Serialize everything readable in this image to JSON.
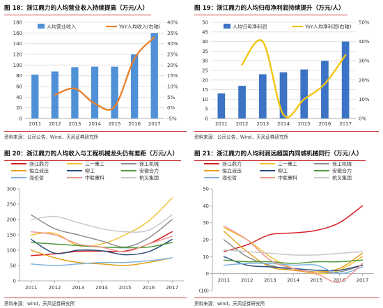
{
  "chart_data": [
    {
      "id": "c18",
      "type": "bar",
      "title": "图 18：浙江鼎力的人均营业收入持续提高（万元/人）",
      "source": "资料来源：公司公告，Wind，天风证券研究所",
      "legend_position": "top",
      "grid": true,
      "categories": [
        "2011",
        "2012",
        "2013",
        "2014",
        "2015",
        "2016",
        "2017"
      ],
      "y_ticks": [
        "0",
        "20",
        "40",
        "60",
        "80",
        "100",
        "120",
        "140",
        "160",
        "180"
      ],
      "y2_ticks": [
        "-5%",
        "0%",
        "5%",
        "10%",
        "15%",
        "20%",
        "25%",
        "30%",
        "35%",
        "40%"
      ],
      "ylim": [
        0,
        180
      ],
      "y2lim": [
        -5,
        40
      ],
      "series": [
        {
          "name": "人均营业收入",
          "kind": "bar",
          "color": "#4f90d6",
          "axis": "left",
          "values": [
            82,
            88,
            96,
            97,
            97,
            120,
            160
          ]
        },
        {
          "name": "YoY人均收入(右轴)",
          "kind": "line",
          "color": "#e8822c",
          "axis": "right",
          "values": [
            null,
            6,
            9,
            2,
            0.5,
            23,
            33
          ]
        }
      ]
    },
    {
      "id": "c19",
      "type": "bar",
      "title": "图 19：浙江鼎力的人均归母净利润持续提升（万元/人）",
      "source": "资料来源：公司公告，Wind，天风证券研究所",
      "legend_position": "top",
      "grid": true,
      "categories": [
        "2011",
        "2012",
        "2013",
        "2014",
        "2015",
        "2016",
        "2017"
      ],
      "y_ticks": [
        "0",
        "5",
        "10",
        "15",
        "20",
        "25",
        "30",
        "35",
        "40",
        "45",
        "50"
      ],
      "y2_ticks": [
        "0%",
        "10%",
        "20%",
        "30%",
        "40%",
        "50%"
      ],
      "ylim": [
        0,
        50
      ],
      "y2lim": [
        0,
        50
      ],
      "series": [
        {
          "name": "人均归母净利润",
          "kind": "bar",
          "color": "#3d73c4",
          "axis": "left",
          "values": [
            13,
            17,
            23,
            24,
            25.5,
            30,
            40
          ]
        },
        {
          "name": "YoY人均净利润(右轴)",
          "kind": "line",
          "color": "#f3c50f",
          "axis": "right",
          "values": [
            null,
            28,
            40,
            2,
            10,
            18,
            33
          ]
        }
      ]
    },
    {
      "id": "c20",
      "type": "line",
      "title": "图 20：浙江鼎力的人均收入与工程机械龙头仍有差距（万元/人）",
      "source": "资料来源：wind，天风证券研究所",
      "legend_position": "top",
      "grid": false,
      "categories": [
        "2011",
        "2012",
        "2013",
        "2014",
        "2015",
        "2016",
        "2017"
      ],
      "y_ticks": [
        "0",
        "50",
        "100",
        "150",
        "200",
        "250",
        "300"
      ],
      "ylim": [
        0,
        300
      ],
      "series": [
        {
          "name": "浙江鼎力",
          "color": "#d61f26",
          "values": [
            82,
            88,
            96,
            97,
            97,
            120,
            160
          ]
        },
        {
          "name": "三一重工",
          "color": "#f1c233",
          "values": [
            150,
            155,
            115,
            120,
            150,
            195,
            270
          ]
        },
        {
          "name": "徐工机械",
          "color": "#8d8d8d",
          "values": [
            215,
            170,
            150,
            130,
            110,
            140,
            200
          ]
        },
        {
          "name": "恒立液压",
          "color": "#e6a01c",
          "values": [
            100,
            75,
            60,
            55,
            50,
            60,
            75
          ]
        },
        {
          "name": "柳工",
          "color": "#2b4f7e",
          "values": [
            135,
            90,
            100,
            98,
            85,
            95,
            135
          ]
        },
        {
          "name": "安徽合力",
          "color": "#4f9a3a",
          "values": [
            125,
            120,
            115,
            110,
            108,
            110,
            125
          ]
        },
        {
          "name": "海伦哲",
          "color": "#7fb3e0",
          "values": [
            55,
            50,
            55,
            60,
            60,
            65,
            75
          ]
        },
        {
          "name": "中联重科",
          "color": "#ef9590",
          "values": [
            160,
            150,
            120,
            110,
            95,
            120,
            145
          ]
        },
        {
          "name": "杭叉集团",
          "color": "#c8c8c8",
          "values": [
            200,
            210,
            190,
            170,
            160,
            165,
            215
          ]
        }
      ]
    },
    {
      "id": "c21",
      "type": "line",
      "title": "图 21：浙江鼎力的人均利润远超国内同城机械同行（万元/人）",
      "source": "资料来源：wind，天风证券研究所",
      "legend_position": "top",
      "grid": false,
      "categories": [
        "2011",
        "2012",
        "2013",
        "2014",
        "2015",
        "2016",
        "2017"
      ],
      "y_ticks": [
        "(10)",
        "0",
        "10",
        "20",
        "30",
        "40",
        "50"
      ],
      "ylim": [
        -10,
        50
      ],
      "series": [
        {
          "name": "浙江鼎力",
          "color": "#d61f26",
          "values": [
            13,
            17,
            23,
            24,
            25.5,
            30,
            40
          ]
        },
        {
          "name": "三一重工",
          "color": "#f1c233",
          "values": [
            27,
            20,
            10,
            3,
            0,
            2,
            10
          ]
        },
        {
          "name": "徐工机械",
          "color": "#8d8d8d",
          "values": [
            20,
            10,
            5,
            2,
            1,
            1,
            5
          ]
        },
        {
          "name": "恒立液压",
          "color": "#e6a01c",
          "values": [
            25,
            13,
            4,
            2,
            1,
            3,
            12
          ]
        },
        {
          "name": "柳工",
          "color": "#2b4f7e",
          "values": [
            10,
            5,
            4,
            3,
            2,
            2,
            5
          ]
        },
        {
          "name": "安徽合力",
          "color": "#4f9a3a",
          "values": [
            8,
            7,
            7,
            6,
            7,
            7,
            8
          ]
        },
        {
          "name": "海伦哲",
          "color": "#7fb3e0",
          "values": [
            5,
            6,
            6,
            5,
            5,
            0,
            4
          ]
        },
        {
          "name": "中联重科",
          "color": "#ef9590",
          "values": [
            28,
            20,
            8,
            3,
            0,
            -5,
            6
          ]
        },
        {
          "name": "杭叉集团",
          "color": "#c8c8c8",
          "values": [
            14,
            13,
            12,
            11,
            11,
            12,
            13
          ]
        }
      ]
    }
  ]
}
